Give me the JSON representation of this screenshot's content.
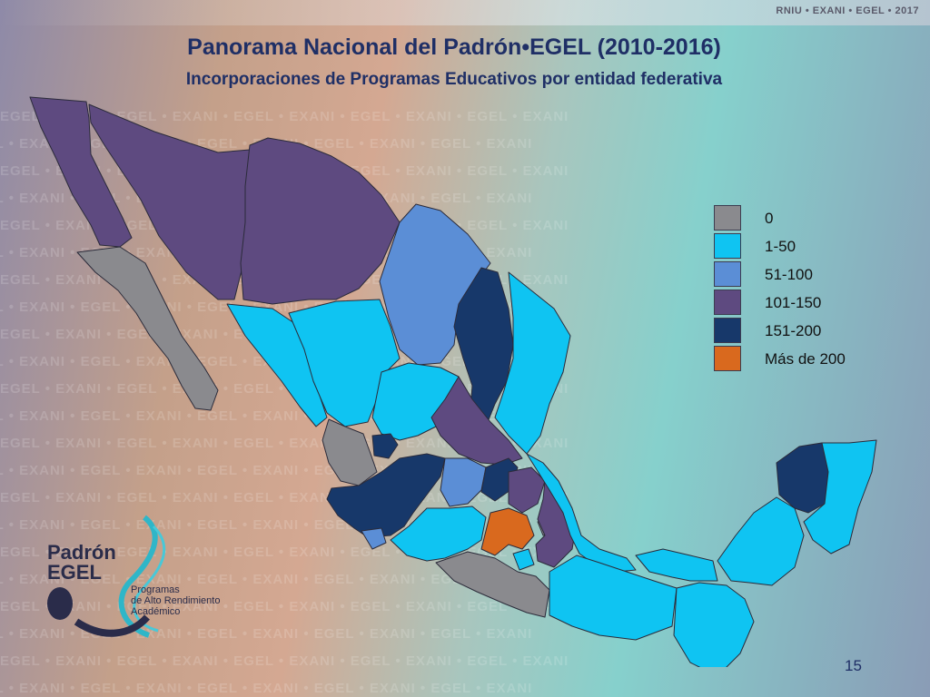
{
  "brand": "RNIU • EXANI • EGEL • 2017",
  "title": "Panorama Nacional del Padrón•EGEL (2010-2016)",
  "subtitle": "Incorporaciones de Programas Educativos por entidad federativa",
  "watermark_text": "EGEL • EXANI • EGEL • EXANI • EGEL • EXANI • EGEL • EXANI • EGEL • EXANI",
  "legend": [
    {
      "label": "0",
      "color": "#8a8a8e"
    },
    {
      "label": "1-50",
      "color": "#0fc4f2"
    },
    {
      "label": "51-100",
      "color": "#5b8ed6"
    },
    {
      "label": "101-150",
      "color": "#5e4a80"
    },
    {
      "label": "151-200",
      "color": "#17386a"
    },
    {
      "label": "Más de 200",
      "color": "#d9691e"
    }
  ],
  "logo": {
    "name_line1": "Padrón",
    "name_line2": "EGEL",
    "tagline": [
      "Programas",
      "de Alto Rendimiento",
      "Académico"
    ]
  },
  "page_number": "15"
}
